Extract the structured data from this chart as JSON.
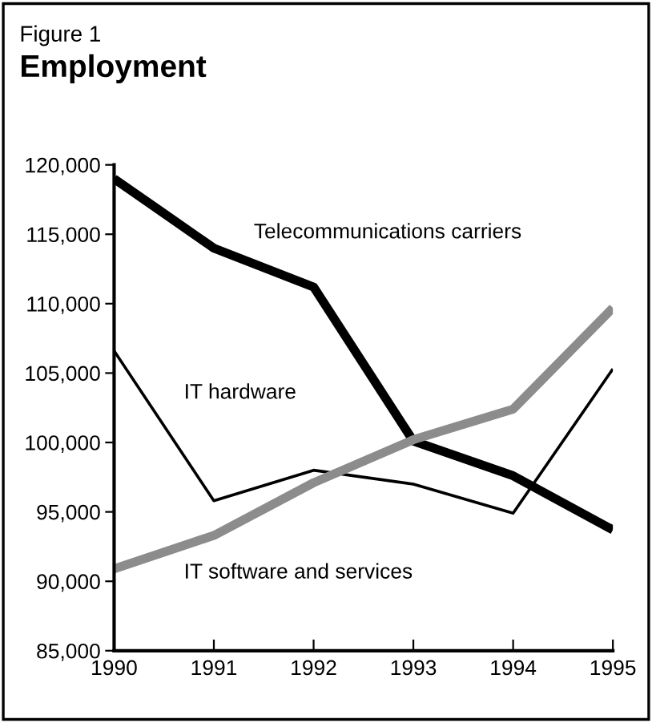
{
  "chart_data": {
    "type": "line",
    "title": "Employment",
    "annotations": [
      "Figure 1"
    ],
    "x": [
      1990,
      1991,
      1992,
      1993,
      1994,
      1995
    ],
    "series": [
      {
        "name": "Telecommunications carriers",
        "color": "#000000",
        "values": [
          119000,
          114000,
          111200,
          100100,
          97600,
          93700
        ]
      },
      {
        "name": "IT hardware",
        "color": "#000000",
        "values": [
          106600,
          95800,
          98000,
          97000,
          94900,
          105300
        ]
      },
      {
        "name": "IT software and services",
        "color": "#8c8c8c",
        "values": [
          90900,
          93300,
          97100,
          100200,
          102400,
          109700
        ]
      }
    ],
    "xlim": [
      1990,
      1995
    ],
    "xticks": [
      1990,
      1991,
      1992,
      1993,
      1994,
      1995
    ],
    "ylim": [
      85000,
      120000
    ],
    "yticks": [
      {
        "value": 85000,
        "label": "85,000"
      },
      {
        "value": 90000,
        "label": "90,000"
      },
      {
        "value": 95000,
        "label": "95,000"
      },
      {
        "value": 100000,
        "label": "100,000"
      },
      {
        "value": 105000,
        "label": "105,000"
      },
      {
        "value": 110000,
        "label": "110,000"
      },
      {
        "value": 115000,
        "label": "115,000"
      },
      {
        "value": 120000,
        "label": "120,000"
      }
    ],
    "grid": false,
    "legend": false,
    "marker": "none",
    "line_style": "solid"
  }
}
